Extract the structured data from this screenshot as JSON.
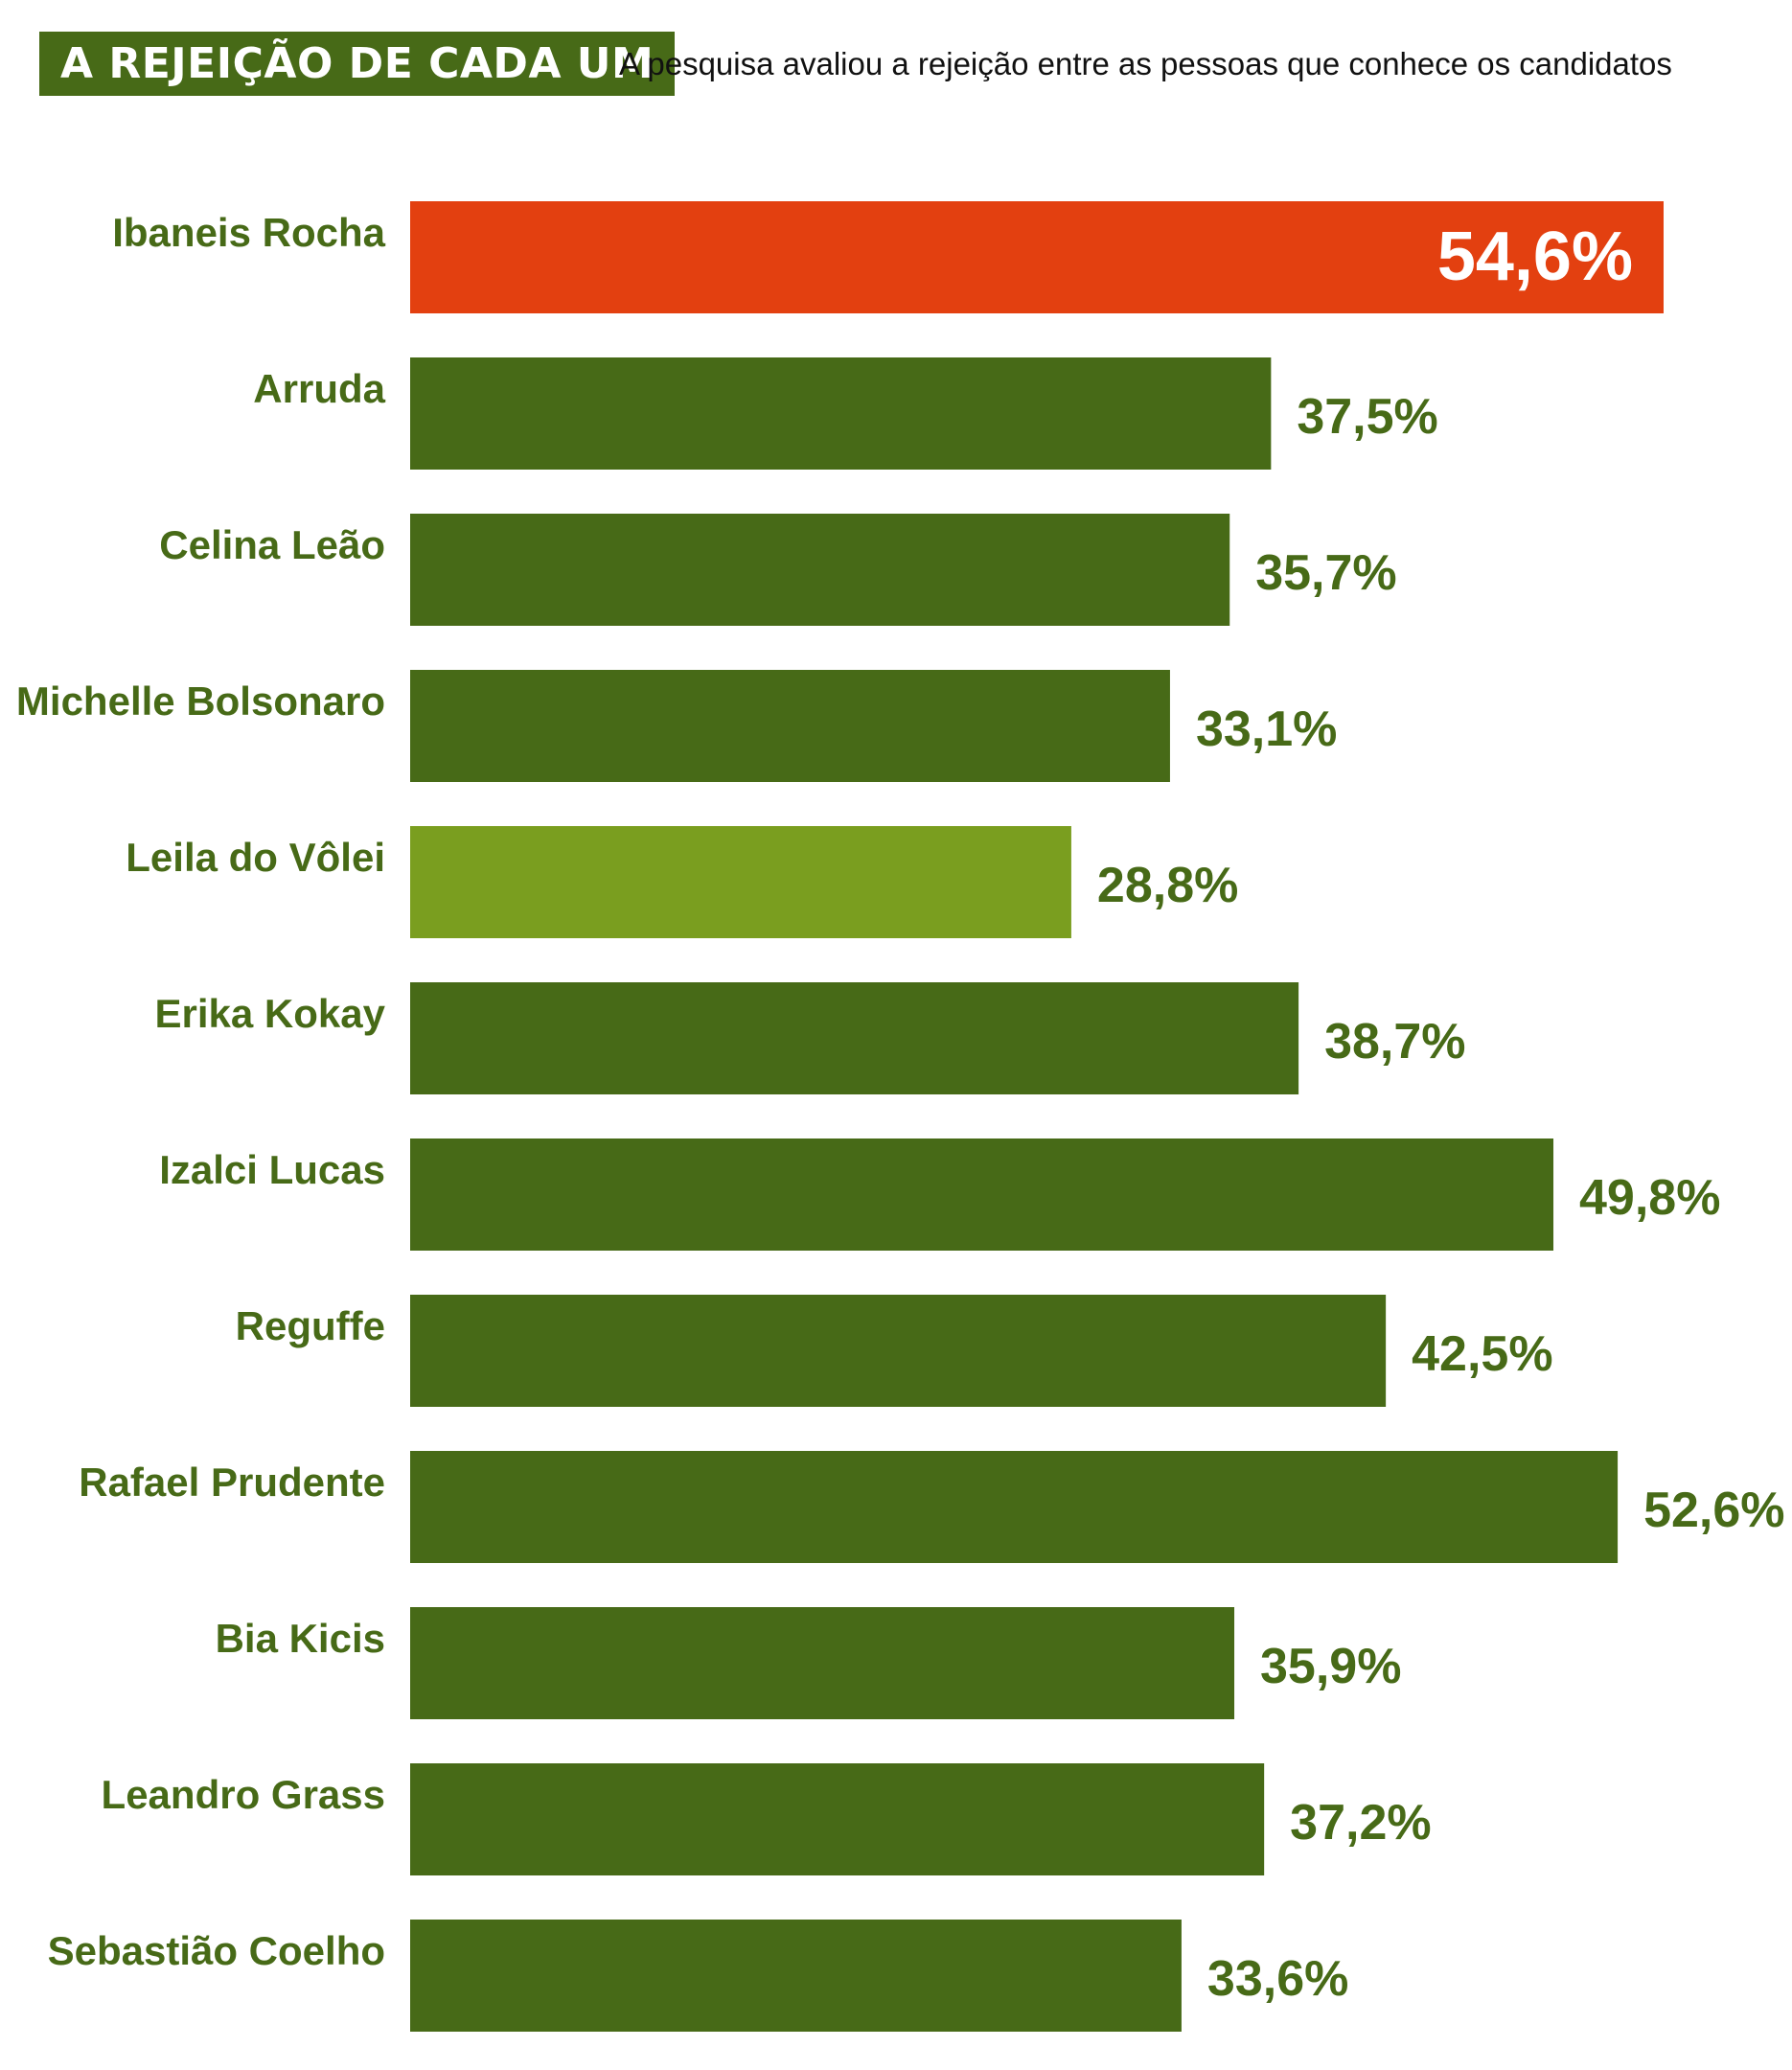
{
  "header": {
    "title": "A REJEIÇÃO DE CADA UM",
    "subtitle": "A pesquisa avaliou a rejeição entre as pessoas que conhece os candidatos"
  },
  "colors": {
    "default_bar": "#476a17",
    "highlight_bar": "#e34010",
    "light_bar": "#7a9e1f",
    "label_text": "#476a17",
    "inside_value_text": "#ffffff",
    "title_background": "#476a17"
  },
  "chart_data": {
    "type": "bar",
    "orientation": "horizontal",
    "title": "A REJEIÇÃO DE CADA UM",
    "subtitle": "A pesquisa avaliou a rejeição entre as pessoas que conhece os candidatos",
    "xlabel": "",
    "ylabel": "",
    "value_unit": "%",
    "xlim": [
      0,
      60
    ],
    "grid": false,
    "legend": "none",
    "categories": [
      "Ibaneis Rocha",
      "Arruda",
      "Celina Leão",
      "Michelle Bolsonaro",
      "Leila do Vôlei",
      "Erika Kokay",
      "Izalci Lucas",
      "Reguffe",
      "Rafael Prudente",
      "Bia Kicis",
      "Leandro Grass",
      "Sebastião Coelho"
    ],
    "values": [
      54.6,
      37.5,
      35.7,
      33.1,
      28.8,
      38.7,
      49.8,
      42.5,
      52.6,
      35.9,
      37.2,
      33.6
    ],
    "value_labels": [
      "54,6%",
      "37,5%",
      "35,7%",
      "33,1%",
      "28,8%",
      "38,7%",
      "49,8%",
      "42,5%",
      "52,6%",
      "35,9%",
      "37,2%",
      "33,6%"
    ],
    "bar_colors": [
      "#e34010",
      "#476a17",
      "#476a17",
      "#476a17",
      "#7a9e1f",
      "#476a17",
      "#476a17",
      "#476a17",
      "#476a17",
      "#476a17",
      "#476a17",
      "#476a17"
    ],
    "label_position": [
      "inside",
      "outside",
      "outside",
      "outside",
      "outside",
      "outside",
      "outside",
      "outside",
      "outside",
      "outside",
      "outside",
      "outside"
    ]
  }
}
